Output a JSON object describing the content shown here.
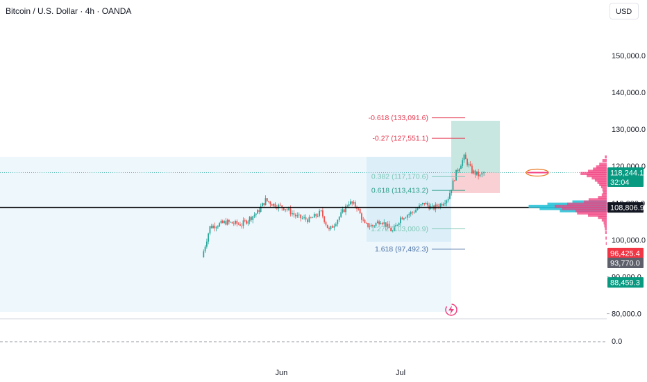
{
  "header": {
    "title": "Bitcoin / U.S. Dollar · 4h · OANDA",
    "currency_button": "USD"
  },
  "colors": {
    "bull": "#26a69a",
    "bear": "#ef5350",
    "fib_red": "#e53950",
    "fib_green": "#2e9c89",
    "fib_blue": "#4a6fa5",
    "profit_zone": "#bfe3dc",
    "loss_zone": "#f8c8cb",
    "volume_profile": "#f23f7f",
    "volume_profile_poc": "#22bfd6",
    "range_fill": "#e6f3fb",
    "current_price_tag": "#089981",
    "support_tag": "#131722",
    "red_tag": "#f23645",
    "gray_tag": "#5d606b"
  },
  "chart_data": {
    "type": "candlestick",
    "title": "Bitcoin / U.S. Dollar · 4h · OANDA",
    "xlabel": "",
    "ylabel": "",
    "x_tick_labels": [
      "Jun",
      "Jul"
    ],
    "y_ticks": [
      {
        "value": 150000,
        "label": "150,000.0"
      },
      {
        "value": 140000,
        "label": "140,000.0"
      },
      {
        "value": 130000,
        "label": "130,000.0"
      },
      {
        "value": 120000,
        "label": "120,000.0"
      },
      {
        "value": 110000,
        "label": "110,000.0"
      },
      {
        "value": 100000,
        "label": "100,000.0"
      },
      {
        "value": 90000,
        "label": "90,000.0"
      },
      {
        "value": 80000,
        "label": "80,000.0"
      }
    ],
    "y_range": [
      80000,
      155000
    ],
    "lower_pane_label": "0.0",
    "grid": false,
    "price_path": [
      [
        "2025-05-12",
        95300
      ],
      [
        "2025-05-14",
        103500
      ],
      [
        "2025-05-18",
        104800
      ],
      [
        "2025-05-22",
        104200
      ],
      [
        "2025-05-26",
        107500
      ],
      [
        "2025-05-28",
        110800
      ],
      [
        "2025-05-30",
        109600
      ],
      [
        "2025-06-02",
        108600
      ],
      [
        "2025-06-05",
        106200
      ],
      [
        "2025-06-08",
        105400
      ],
      [
        "2025-06-11",
        107500
      ],
      [
        "2025-06-13",
        102500
      ],
      [
        "2025-06-16",
        106900
      ],
      [
        "2025-06-18",
        110200
      ],
      [
        "2025-06-20",
        109000
      ],
      [
        "2025-06-22",
        104000
      ],
      [
        "2025-06-24",
        103800
      ],
      [
        "2025-06-26",
        105400
      ],
      [
        "2025-06-29",
        102200
      ],
      [
        "2025-07-01",
        106000
      ],
      [
        "2025-07-04",
        107500
      ],
      [
        "2025-07-07",
        110000
      ],
      [
        "2025-07-09",
        108500
      ],
      [
        "2025-07-11",
        109600
      ],
      [
        "2025-07-13",
        111500
      ],
      [
        "2025-07-15",
        118200
      ],
      [
        "2025-07-17",
        122400
      ],
      [
        "2025-07-19",
        118600
      ],
      [
        "2025-07-21",
        117300
      ],
      [
        "2025-07-22",
        118244
      ]
    ],
    "fib_levels": [
      {
        "ratio": "-0.618",
        "value": 133091.6,
        "label": "-0.618 (133,091.6)",
        "color": "#e53950"
      },
      {
        "ratio": "-0.27",
        "value": 127551.1,
        "label": "-0.27 (127,551.1)",
        "color": "#e53950"
      },
      {
        "ratio": "0.382",
        "value": 117170.6,
        "label": "0.382 (117,170.6)",
        "color": "#7fc6b5"
      },
      {
        "ratio": "0.618",
        "value": 113413.2,
        "label": "0.618 (113,413.2)",
        "color": "#2e9c89"
      },
      {
        "ratio": "1.272",
        "value": 103000.9,
        "label": "1.272 (103,000.9)",
        "color": "#7fc6b5"
      },
      {
        "ratio": "1.618",
        "value": 97492.3,
        "label": "1.618 (97,492.3)",
        "color": "#4a6fa5"
      }
    ],
    "horizontal_line": 108806.9,
    "long_position": {
      "entry": 118244.1,
      "target": 132300,
      "stop": 112700
    },
    "price_tags": [
      {
        "value": 118244.1,
        "label": "118,244.1",
        "sublabel": "32:04",
        "color": "#089981"
      },
      {
        "value": 108806.9,
        "label": "108,806.9",
        "color": "#131722"
      },
      {
        "value": 96425.4,
        "label": "96,425.4",
        "color": "#f23645"
      },
      {
        "value": 93770.0,
        "label": "93,770.0",
        "color": "#5d606b"
      },
      {
        "value": 88459.3,
        "label": "88,459.3",
        "color": "#089981"
      }
    ]
  }
}
